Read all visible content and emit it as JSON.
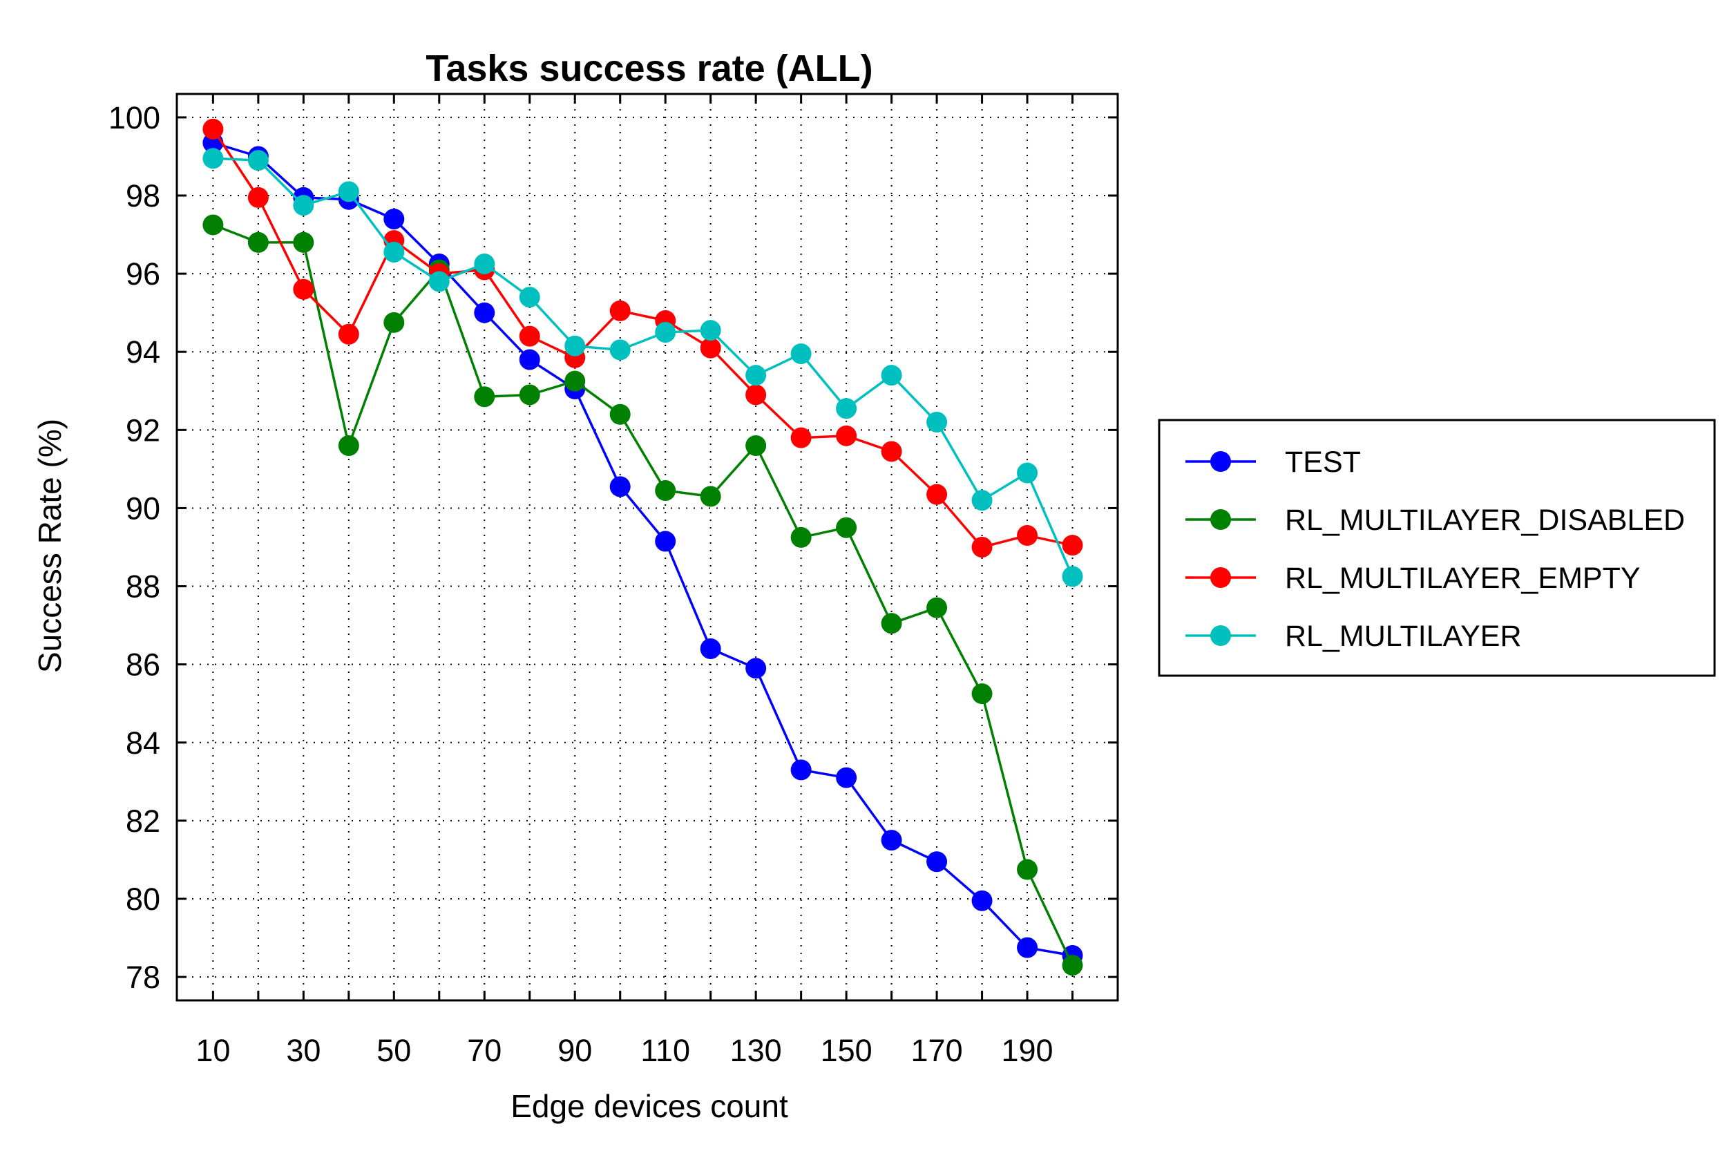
{
  "chart_data": {
    "type": "line",
    "title": "Tasks success rate (ALL)",
    "xlabel": "Edge devices count",
    "ylabel": "Success Rate (%)",
    "xlim": [
      2,
      210
    ],
    "ylim": [
      77.4,
      100.6
    ],
    "x_ticks": [
      10,
      30,
      50,
      70,
      90,
      110,
      130,
      150,
      170,
      190
    ],
    "x_ticks_minor": [
      20,
      40,
      60,
      80,
      100,
      120,
      140,
      160,
      180,
      200
    ],
    "y_ticks": [
      78,
      80,
      82,
      84,
      86,
      88,
      90,
      92,
      94,
      96,
      98,
      100
    ],
    "grid": true,
    "legend_position": "right",
    "x": [
      10,
      20,
      30,
      40,
      50,
      60,
      70,
      80,
      90,
      100,
      110,
      120,
      130,
      140,
      150,
      160,
      170,
      180,
      190,
      200
    ],
    "series": [
      {
        "name": "TEST",
        "color": "#0000ff",
        "values": [
          99.35,
          99.0,
          97.95,
          97.9,
          97.4,
          96.25,
          95.0,
          93.8,
          93.05,
          90.55,
          89.15,
          86.4,
          85.9,
          83.3,
          83.1,
          81.5,
          80.95,
          79.95,
          78.75,
          78.55
        ]
      },
      {
        "name": "RL_MULTILAYER_DISABLED",
        "color": "#008000",
        "values": [
          97.25,
          96.8,
          96.8,
          91.6,
          94.75,
          96.1,
          92.85,
          92.9,
          93.25,
          92.4,
          90.45,
          90.3,
          91.6,
          89.25,
          89.5,
          87.05,
          87.45,
          85.25,
          80.75,
          78.3
        ]
      },
      {
        "name": "RL_MULTILAYER_EMPTY",
        "color": "#ff0000",
        "values": [
          99.7,
          97.95,
          95.6,
          94.45,
          96.85,
          96.0,
          96.1,
          94.4,
          93.85,
          95.05,
          94.8,
          94.1,
          92.9,
          91.8,
          91.85,
          91.45,
          90.35,
          89.0,
          89.3,
          89.05
        ]
      },
      {
        "name": "RL_MULTILAYER",
        "color": "#00bfbf",
        "values": [
          98.95,
          98.9,
          97.75,
          98.1,
          96.55,
          95.8,
          96.25,
          95.4,
          94.15,
          94.05,
          94.5,
          94.55,
          93.4,
          93.95,
          92.55,
          93.4,
          92.2,
          90.2,
          90.9,
          88.25
        ]
      }
    ]
  }
}
